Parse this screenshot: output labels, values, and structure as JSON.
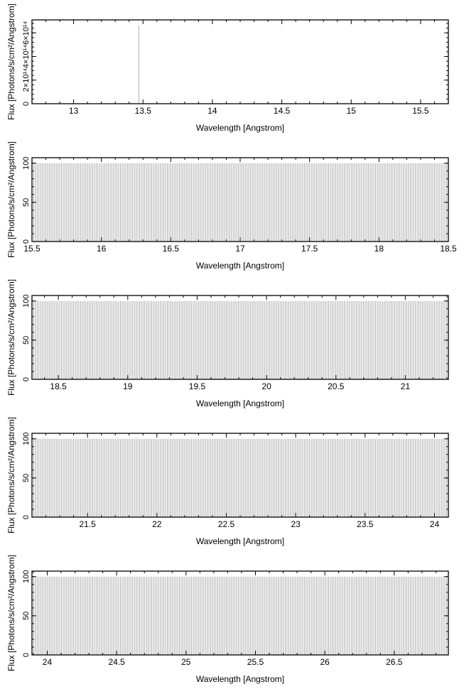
{
  "chart_data": [
    {
      "type": "bar",
      "xlabel": "Wavelength [Angstrom]",
      "ylabel": "Flux [Photons/s/cm²/Angstrom]",
      "xlim": [
        12.7,
        15.7
      ],
      "ylim": [
        0,
        710000000000000.0
      ],
      "xticks": [
        "13",
        "13.5",
        "14",
        "14.5",
        "15",
        "15.5"
      ],
      "xtick_values": [
        13,
        13.5,
        14,
        14.5,
        15,
        15.5
      ],
      "yticks": [
        "0",
        "2×10¹⁴",
        "4×10¹⁴",
        "6×10¹⁴"
      ],
      "ytick_values": [
        0,
        200000000000000.0,
        400000000000000.0,
        600000000000000.0
      ],
      "lines": [
        {
          "x": 13.47,
          "y": 660000000000000.0
        }
      ],
      "line_color": "#b0b0b0",
      "grid": false
    },
    {
      "type": "bar",
      "xlabel": "Wavelength [Angstrom]",
      "ylabel": "Flux [Photons/s/cm²/Angstrom]",
      "xlim": [
        15.5,
        18.5
      ],
      "ylim": [
        0,
        107
      ],
      "xticks": [
        "15.5",
        "16",
        "16.5",
        "17",
        "17.5",
        "18",
        "18.5"
      ],
      "xtick_values": [
        15.5,
        16,
        16.5,
        17,
        17.5,
        18,
        18.5
      ],
      "yticks": [
        "0",
        "50",
        "100"
      ],
      "ytick_values": [
        0,
        50,
        100
      ],
      "comb": {
        "start": 15.5,
        "end": 18.5,
        "step": 0.0125,
        "y": 100
      },
      "line_color": "#b0b0b0",
      "grid": false
    },
    {
      "type": "bar",
      "xlabel": "Wavelength [Angstrom]",
      "ylabel": "Flux [Photons/s/cm²/Angstrom]",
      "xlim": [
        18.31,
        21.31
      ],
      "ylim": [
        0,
        107
      ],
      "xticks": [
        "18.5",
        "19",
        "19.5",
        "20",
        "20.5",
        "21"
      ],
      "xtick_values": [
        18.5,
        19,
        19.5,
        20,
        20.5,
        21
      ],
      "yticks": [
        "0",
        "50",
        "100"
      ],
      "ytick_values": [
        0,
        50,
        100
      ],
      "comb": {
        "start": 18.31,
        "end": 21.31,
        "step": 0.0125,
        "y": 100
      },
      "line_color": "#b0b0b0",
      "grid": false
    },
    {
      "type": "bar",
      "xlabel": "Wavelength [Angstrom]",
      "ylabel": "Flux [Photons/s/cm²/Angstrom]",
      "xlim": [
        21.1,
        24.1
      ],
      "ylim": [
        0,
        107
      ],
      "xticks": [
        "21.5",
        "22",
        "22.5",
        "23",
        "23.5",
        "24"
      ],
      "xtick_values": [
        21.5,
        22,
        22.5,
        23,
        23.5,
        24
      ],
      "yticks": [
        "0",
        "50",
        "100"
      ],
      "ytick_values": [
        0,
        50,
        100
      ],
      "comb": {
        "start": 21.1,
        "end": 24.1,
        "step": 0.0125,
        "y": 100
      },
      "line_color": "#b0b0b0",
      "grid": false
    },
    {
      "type": "bar",
      "xlabel": "Wavelength [Angstrom]",
      "ylabel": "Flux [Photons/s/cm²/Angstrom]",
      "xlim": [
        23.89,
        26.89
      ],
      "ylim": [
        0,
        107
      ],
      "xticks": [
        "24",
        "24.5",
        "25",
        "25.5",
        "26",
        "26.5"
      ],
      "xtick_values": [
        24,
        24.5,
        25,
        25.5,
        26,
        26.5
      ],
      "yticks": [
        "0",
        "50",
        "100"
      ],
      "ytick_values": [
        0,
        50,
        100
      ],
      "comb": {
        "start": 23.89,
        "end": 26.89,
        "step": 0.0125,
        "y": 100
      },
      "line_color": "#b0b0b0",
      "grid": false
    }
  ]
}
